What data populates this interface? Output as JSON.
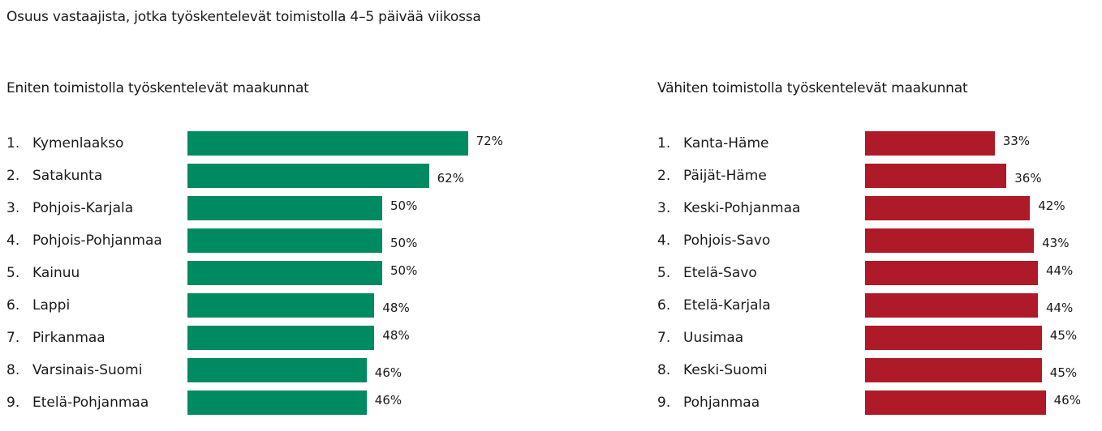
{
  "title": "Osuus vastaajista, jotka työskentelevät toimistolla 4–5 päivää viikossa",
  "colors": {
    "green": "#008a61",
    "red": "#ae1a27"
  },
  "chart_data": [
    {
      "type": "bar",
      "orientation": "horizontal",
      "title": "Eniten toimistolla työskentelevät maakunnat",
      "unit": "%",
      "ranks": [
        "1.",
        "2.",
        "3.",
        "4.",
        "5.",
        "6.",
        "7.",
        "8.",
        "9."
      ],
      "categories": [
        "Kymenlaakso",
        "Satakunta",
        "Pohjois-Karjala",
        "Pohjois-Pohjanmaa",
        "Kainuu",
        "Lappi",
        "Pirkanmaa",
        "Varsinais-Suomi",
        "Etelä-Pohjanmaa"
      ],
      "values": [
        72,
        62,
        50,
        50,
        50,
        48,
        48,
        46,
        46
      ],
      "labels": [
        "72%",
        "62%",
        "50%",
        "50%",
        "50%",
        "48%",
        "48%",
        "46%",
        "46%"
      ],
      "color": "#008a61"
    },
    {
      "type": "bar",
      "orientation": "horizontal",
      "title": "Vähiten toimistolla työskentelevät maakunnat",
      "unit": "%",
      "ranks": [
        "1.",
        "2.",
        "3.",
        "4.",
        "5.",
        "6.",
        "7.",
        "8.",
        "9."
      ],
      "categories": [
        "Kanta-Häme",
        "Päijät-Häme",
        "Keski-Pohjanmaa",
        "Pohjois-Savo",
        "Etelä-Savo",
        "Etelä-Karjala",
        "Uusimaa",
        "Keski-Suomi",
        "Pohjanmaa"
      ],
      "values": [
        33,
        36,
        42,
        43,
        44,
        44,
        45,
        45,
        46
      ],
      "labels": [
        "33%",
        "36%",
        "42%",
        "43%",
        "44%",
        "44%",
        "45%",
        "45%",
        "46%"
      ],
      "color": "#ae1a27"
    }
  ]
}
